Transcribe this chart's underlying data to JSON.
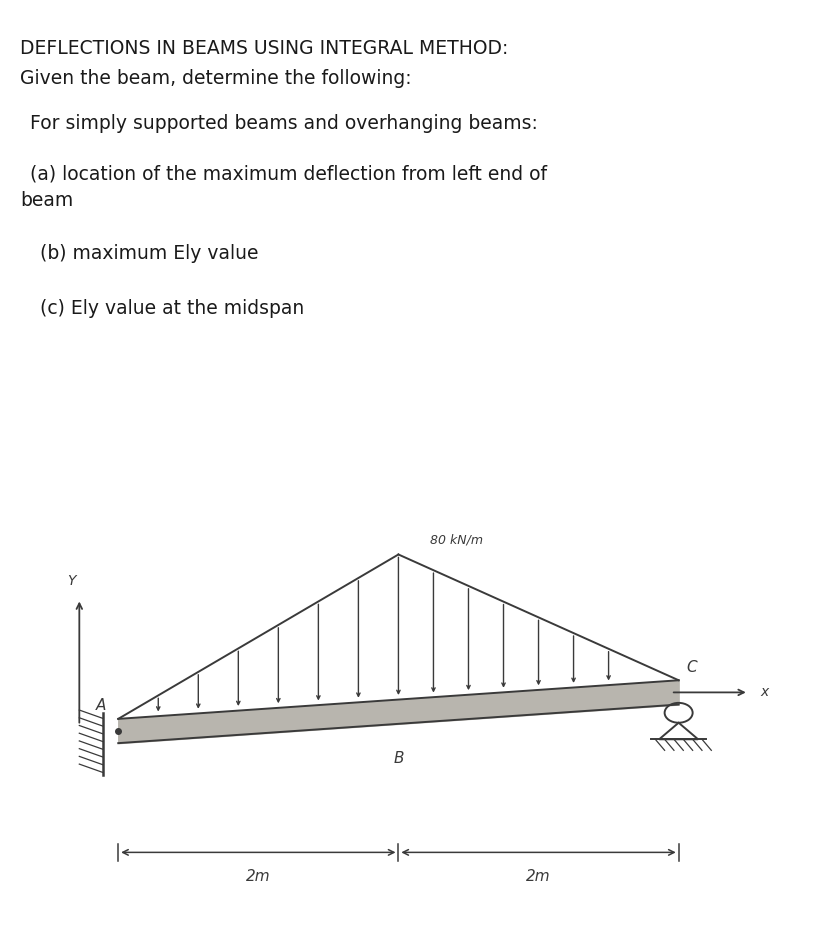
{
  "title_line1": "DEFLECTIONS IN BEAMS USING INTEGRAL METHOD:",
  "title_line2": "Given the beam, determine the following:",
  "subtitle": "For simply supported beams and overhanging beams:",
  "item_a_1": "(a) location of the maximum deflection from left end of",
  "item_a_2": "beam",
  "item_b": "(b) maximum Ely value",
  "item_c": "(c) Ely value at the midspan",
  "load_label": "80 kN/m",
  "dim_label1": "2m",
  "dim_label2": "2m",
  "point_A": "A",
  "point_B": "B",
  "point_C": "C",
  "axis_x": "x",
  "axis_y": "Y",
  "diagram_bg": "#d0cfc9",
  "text_color": "#1a1a1a",
  "sketch_color": "#3a3a3a",
  "figure_bg": "#ffffff",
  "text_fontsize": 13.5,
  "title_fontsize": 13.5,
  "diagram_sketch_lw": 1.4
}
